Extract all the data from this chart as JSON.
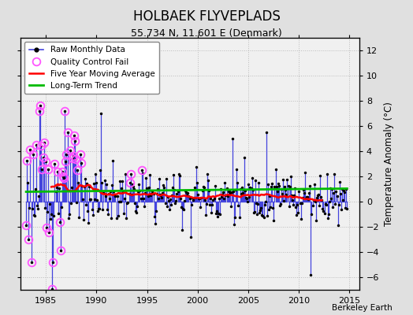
{
  "title": "HOLBAEK FLYVEPLADS",
  "subtitle": "55.734 N, 11.601 E (Denmark)",
  "ylabel": "Temperature Anomaly (°C)",
  "credit": "Berkeley Earth",
  "xlim": [
    1982.5,
    2016.0
  ],
  "ylim": [
    -7,
    13
  ],
  "yticks": [
    -6,
    -4,
    -2,
    0,
    2,
    4,
    6,
    8,
    10,
    12
  ],
  "xticks": [
    1985,
    1990,
    1995,
    2000,
    2005,
    2010,
    2015
  ],
  "bg_color": "#e0e0e0",
  "plot_bg_color": "#f0f0f0",
  "raw_color": "#4444dd",
  "raw_lw": 0.9,
  "marker_color": "black",
  "marker_size": 2.5,
  "qc_color": "#ff55ff",
  "ma_color": "red",
  "ma_lw": 1.8,
  "trend_color": "#00bb00",
  "trend_lw": 2.0,
  "grid_color": "#bbbbbb",
  "grid_style": "dotted",
  "legend_fontsize": 7.5,
  "title_fontsize": 12,
  "subtitle_fontsize": 9,
  "tick_labelsize": 8
}
